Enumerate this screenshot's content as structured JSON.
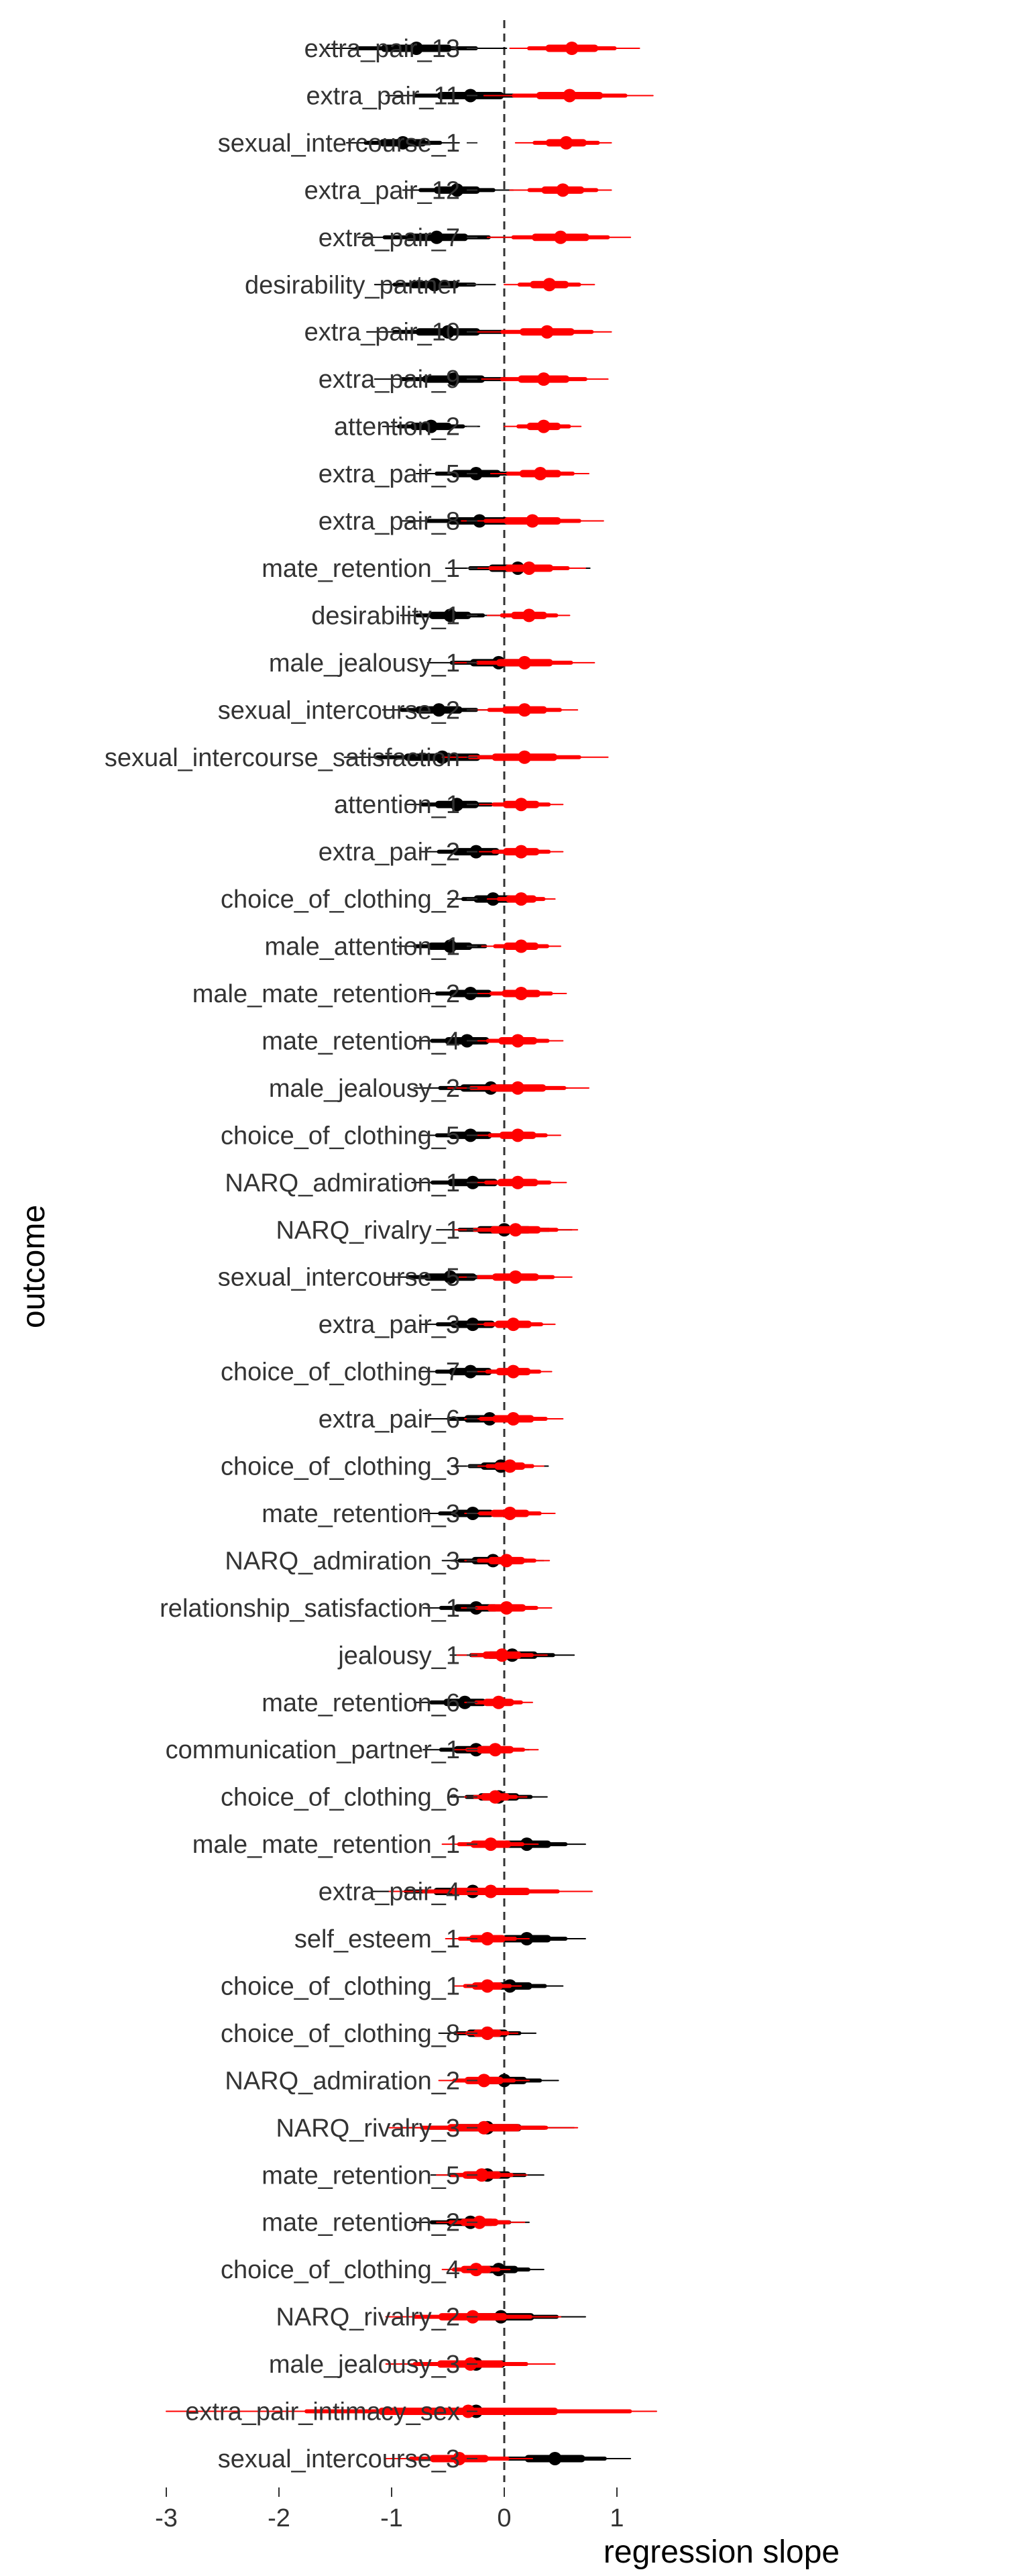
{
  "chart_data": {
    "type": "forest",
    "title": "",
    "xlabel": "regression slope",
    "ylabel": "outcome",
    "xlim": [
      -3,
      1.35
    ],
    "xticks": [
      -3,
      -2,
      -1,
      0,
      1
    ],
    "xtick_labels": [
      "-3",
      "-2",
      "-1",
      "0",
      "1"
    ],
    "reference_line_x": 0,
    "grid": false,
    "legend": "none",
    "colors": {
      "series_black": "#000000",
      "series_red": "#ff0000",
      "reference_line": "#333333"
    },
    "categories": [
      "extra_pair_13",
      "extra_pair_11",
      "sexual_intercourse_1",
      "extra_pair_12",
      "extra_pair_7",
      "desirability_partner",
      "extra_pair_10",
      "extra_pair_9",
      "attention_2",
      "extra_pair_5",
      "extra_pair_8",
      "mate_retention_1",
      "desirability_1",
      "male_jealousy_1",
      "sexual_intercourse_2",
      "sexual_intercourse_satisfaction",
      "attention_1",
      "extra_pair_2",
      "choice_of_clothing_2",
      "male_attention_1",
      "male_mate_retention_2",
      "mate_retention_4",
      "male_jealousy_2",
      "choice_of_clothing_5",
      "NARQ_admiration_1",
      "NARQ_rivalry_1",
      "sexual_intercourse_5",
      "extra_pair_3",
      "choice_of_clothing_7",
      "extra_pair_6",
      "choice_of_clothing_3",
      "mate_retention_3",
      "NARQ_admiration_3",
      "relationship_satisfaction_1",
      "jealousy_1",
      "mate_retention_6",
      "communication_partner_1",
      "choice_of_clothing_6",
      "male_mate_retention_1",
      "extra_pair_4",
      "self_esteem_1",
      "choice_of_clothing_1",
      "choice_of_clothing_8",
      "NARQ_admiration_2",
      "NARQ_rivalry_3",
      "mate_retention_5",
      "mate_retention_2",
      "choice_of_clothing_4",
      "NARQ_rivalry_2",
      "male_jealousy_3",
      "extra_pair_intimacy_sex",
      "sexual_intercourse_3"
    ],
    "series": [
      {
        "color": "#000000",
        "points": [
          [
            -0.78,
            -1.58,
            0.02
          ],
          [
            -0.3,
            -1.05,
            0.45
          ],
          [
            -0.9,
            -1.4,
            -0.4
          ],
          [
            -0.42,
            -0.9,
            0.08
          ],
          [
            -0.6,
            -1.3,
            0.1
          ],
          [
            -0.62,
            -1.15,
            -0.08
          ],
          [
            -0.5,
            -1.22,
            0.22
          ],
          [
            -0.45,
            -1.15,
            0.25
          ],
          [
            -0.65,
            -1.08,
            -0.22
          ],
          [
            -0.25,
            -0.78,
            0.28
          ],
          [
            -0.22,
            -0.92,
            0.48
          ],
          [
            0.12,
            -0.52,
            0.76
          ],
          [
            -0.48,
            -0.92,
            -0.04
          ],
          [
            -0.05,
            -0.68,
            0.58
          ],
          [
            -0.58,
            -1.08,
            -0.08
          ],
          [
            -0.55,
            -1.42,
            0.32
          ],
          [
            -0.42,
            -0.88,
            0.04
          ],
          [
            -0.25,
            -0.75,
            0.25
          ],
          [
            -0.1,
            -0.5,
            0.3
          ],
          [
            -0.48,
            -0.95,
            -0.01
          ],
          [
            -0.3,
            -0.75,
            0.15
          ],
          [
            -0.33,
            -0.8,
            0.14
          ],
          [
            -0.12,
            -0.8,
            0.56
          ],
          [
            -0.3,
            -0.75,
            0.15
          ],
          [
            -0.28,
            -0.82,
            0.26
          ],
          [
            0.0,
            -0.6,
            0.6
          ],
          [
            -0.48,
            -1.05,
            0.09
          ],
          [
            -0.28,
            -0.75,
            0.19
          ],
          [
            -0.3,
            -0.75,
            0.15
          ],
          [
            -0.13,
            -0.68,
            0.42
          ],
          [
            -0.03,
            -0.45,
            0.39
          ],
          [
            -0.28,
            -0.72,
            0.16
          ],
          [
            -0.1,
            -0.55,
            0.35
          ],
          [
            -0.25,
            -0.72,
            0.22
          ],
          [
            0.07,
            -0.48,
            0.62
          ],
          [
            -0.35,
            -0.8,
            0.1
          ],
          [
            -0.25,
            -0.72,
            0.22
          ],
          [
            -0.05,
            -0.48,
            0.38
          ],
          [
            0.2,
            -0.32,
            0.72
          ],
          [
            -0.28,
            -1.18,
            0.62
          ],
          [
            0.2,
            -0.32,
            0.72
          ],
          [
            0.05,
            -0.42,
            0.52
          ],
          [
            -0.15,
            -0.58,
            0.28
          ],
          [
            0.0,
            -0.48,
            0.48
          ],
          [
            -0.15,
            -0.92,
            0.62
          ],
          [
            -0.15,
            -0.65,
            0.35
          ],
          [
            -0.3,
            -0.82,
            0.22
          ],
          [
            -0.05,
            -0.45,
            0.35
          ],
          [
            -0.03,
            -0.78,
            0.72
          ],
          [
            -0.25,
            -0.9,
            0.4
          ],
          [
            -0.25,
            -2.05,
            1.35
          ],
          [
            0.45,
            -0.22,
            1.12
          ]
        ]
      },
      {
        "color": "#ff0000",
        "points": [
          [
            0.6,
            0.05,
            1.2
          ],
          [
            0.58,
            -0.18,
            1.32
          ],
          [
            0.55,
            0.1,
            0.95
          ],
          [
            0.52,
            0.05,
            0.95
          ],
          [
            0.5,
            -0.15,
            1.12
          ],
          [
            0.4,
            0.0,
            0.8
          ],
          [
            0.38,
            -0.25,
            0.95
          ],
          [
            0.35,
            -0.2,
            0.92
          ],
          [
            0.35,
            0.0,
            0.68
          ],
          [
            0.32,
            -0.12,
            0.75
          ],
          [
            0.25,
            -0.38,
            0.88
          ],
          [
            0.22,
            -0.32,
            0.72
          ],
          [
            0.22,
            -0.15,
            0.58
          ],
          [
            0.18,
            -0.45,
            0.8
          ],
          [
            0.18,
            -0.3,
            0.65
          ],
          [
            0.18,
            -0.55,
            0.92
          ],
          [
            0.15,
            -0.22,
            0.52
          ],
          [
            0.15,
            -0.22,
            0.52
          ],
          [
            0.15,
            -0.15,
            0.45
          ],
          [
            0.15,
            -0.2,
            0.5
          ],
          [
            0.15,
            -0.25,
            0.55
          ],
          [
            0.12,
            -0.28,
            0.52
          ],
          [
            0.12,
            -0.5,
            0.75
          ],
          [
            0.12,
            -0.25,
            0.5
          ],
          [
            0.12,
            -0.3,
            0.55
          ],
          [
            0.1,
            -0.45,
            0.65
          ],
          [
            0.1,
            -0.4,
            0.6
          ],
          [
            0.08,
            -0.3,
            0.45
          ],
          [
            0.08,
            -0.28,
            0.42
          ],
          [
            0.08,
            -0.35,
            0.52
          ],
          [
            0.05,
            -0.25,
            0.35
          ],
          [
            0.05,
            -0.35,
            0.45
          ],
          [
            0.02,
            -0.35,
            0.4
          ],
          [
            0.02,
            -0.38,
            0.42
          ],
          [
            -0.02,
            -0.42,
            0.38
          ],
          [
            -0.05,
            -0.35,
            0.25
          ],
          [
            -0.08,
            -0.45,
            0.3
          ],
          [
            -0.08,
            -0.35,
            0.2
          ],
          [
            -0.12,
            -0.55,
            0.3
          ],
          [
            -0.12,
            -1.02,
            0.78
          ],
          [
            -0.15,
            -0.52,
            0.22
          ],
          [
            -0.15,
            -0.45,
            0.15
          ],
          [
            -0.15,
            -0.42,
            0.12
          ],
          [
            -0.18,
            -0.58,
            0.22
          ],
          [
            -0.18,
            -1.02,
            0.65
          ],
          [
            -0.2,
            -0.6,
            0.2
          ],
          [
            -0.22,
            -0.6,
            0.18
          ],
          [
            -0.25,
            -0.55,
            0.05
          ],
          [
            -0.28,
            -1.05,
            0.5
          ],
          [
            -0.3,
            -1.05,
            0.45
          ],
          [
            -0.32,
            -3.0,
            1.35
          ],
          [
            -0.4,
            -1.05,
            0.25
          ]
        ]
      }
    ]
  }
}
